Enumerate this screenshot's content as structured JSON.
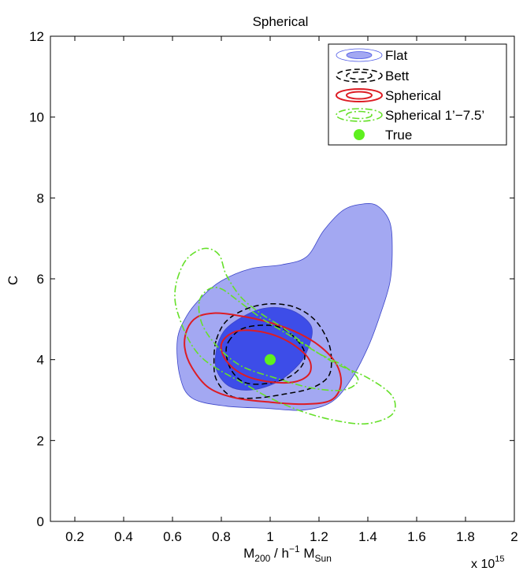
{
  "chart_data": {
    "type": "contour",
    "title": "Spherical",
    "xlabel": {
      "main": "M",
      "sub1": "200",
      "mid": " / h",
      "sup": "−1",
      "main2": " M",
      "sub2": "Sun"
    },
    "ylabel": "C",
    "x_multiplier": {
      "base": "x 10",
      "exponent": "15"
    },
    "xlim": [
      0.1,
      2.0
    ],
    "ylim": [
      0,
      12
    ],
    "xticks": [
      0.2,
      0.4,
      0.6,
      0.8,
      1.0,
      1.2,
      1.4,
      1.6,
      1.8,
      2.0
    ],
    "xtick_labels": [
      "0.2",
      "0.4",
      "0.6",
      "0.8",
      "1",
      "1.2",
      "1.4",
      "1.6",
      "1.8",
      "2"
    ],
    "yticks": [
      0,
      2,
      4,
      6,
      8,
      10,
      12
    ],
    "ytick_labels": [
      "0",
      "2",
      "4",
      "6",
      "8",
      "10",
      "12"
    ],
    "grid": false,
    "legend_position": "top-right",
    "legend": [
      {
        "label": "Flat",
        "style": "filled",
        "color": "#4a56e6"
      },
      {
        "label": "Bett",
        "style": "dashed",
        "color": "#000000"
      },
      {
        "label": "Spherical",
        "style": "solid",
        "color": "#dd1c24"
      },
      {
        "label": "Spherical 1’−7.5’",
        "style": "dashdot",
        "color": "#66e02a"
      },
      {
        "label": "True",
        "style": "marker",
        "color": "#5ef01e"
      }
    ],
    "series": [
      {
        "name": "Flat",
        "contours": [
          {
            "level": "outer",
            "fill": "#a3a8f2",
            "points": [
              [
                0.62,
                4.5
              ],
              [
                0.66,
                5.1
              ],
              [
                0.72,
                5.55
              ],
              [
                0.8,
                5.95
              ],
              [
                0.92,
                6.25
              ],
              [
                1.05,
                6.35
              ],
              [
                1.15,
                6.55
              ],
              [
                1.22,
                7.2
              ],
              [
                1.3,
                7.7
              ],
              [
                1.38,
                7.85
              ],
              [
                1.44,
                7.8
              ],
              [
                1.49,
                7.4
              ],
              [
                1.5,
                6.7
              ],
              [
                1.49,
                5.9
              ],
              [
                1.45,
                5.1
              ],
              [
                1.4,
                4.3
              ],
              [
                1.33,
                3.5
              ],
              [
                1.25,
                2.95
              ],
              [
                1.13,
                2.75
              ],
              [
                0.98,
                2.8
              ],
              [
                0.82,
                2.85
              ],
              [
                0.68,
                3.05
              ],
              [
                0.63,
                3.6
              ]
            ]
          },
          {
            "level": "inner",
            "fill": "#3d4de8",
            "points": [
              [
                0.78,
                4.25
              ],
              [
                0.81,
                4.7
              ],
              [
                0.87,
                5.0
              ],
              [
                0.96,
                5.25
              ],
              [
                1.05,
                5.28
              ],
              [
                1.12,
                5.12
              ],
              [
                1.17,
                4.8
              ],
              [
                1.16,
                4.35
              ],
              [
                1.12,
                3.9
              ],
              [
                1.03,
                3.45
              ],
              [
                0.92,
                3.25
              ],
              [
                0.83,
                3.35
              ],
              [
                0.78,
                3.75
              ]
            ]
          }
        ]
      },
      {
        "name": "Bett",
        "contours": [
          {
            "level": "outer",
            "points": [
              [
                0.78,
                4.5
              ],
              [
                0.82,
                4.95
              ],
              [
                0.9,
                5.25
              ],
              [
                1.0,
                5.38
              ],
              [
                1.1,
                5.3
              ],
              [
                1.18,
                5.0
              ],
              [
                1.23,
                4.55
              ],
              [
                1.25,
                4.1
              ],
              [
                1.24,
                3.6
              ],
              [
                1.17,
                3.3
              ],
              [
                1.06,
                3.15
              ],
              [
                0.94,
                3.05
              ],
              [
                0.84,
                3.1
              ],
              [
                0.78,
                3.5
              ],
              [
                0.77,
                4.0
              ]
            ]
          },
          {
            "level": "inner",
            "points": [
              [
                0.83,
                4.45
              ],
              [
                0.88,
                4.75
              ],
              [
                0.96,
                4.85
              ],
              [
                1.04,
                4.8
              ],
              [
                1.1,
                4.55
              ],
              [
                1.14,
                4.2
              ],
              [
                1.13,
                3.85
              ],
              [
                1.07,
                3.55
              ],
              [
                0.97,
                3.4
              ],
              [
                0.89,
                3.45
              ],
              [
                0.84,
                3.75
              ],
              [
                0.82,
                4.15
              ]
            ]
          }
        ]
      },
      {
        "name": "Spherical",
        "contours": [
          {
            "level": "outer",
            "points": [
              [
                0.66,
                4.75
              ],
              [
                0.7,
                5.05
              ],
              [
                0.77,
                5.15
              ],
              [
                0.86,
                5.1
              ],
              [
                0.98,
                4.95
              ],
              [
                1.1,
                4.7
              ],
              [
                1.2,
                4.35
              ],
              [
                1.27,
                3.9
              ],
              [
                1.29,
                3.4
              ],
              [
                1.25,
                3.0
              ],
              [
                1.14,
                2.9
              ],
              [
                1.0,
                2.95
              ],
              [
                0.86,
                3.05
              ],
              [
                0.75,
                3.3
              ],
              [
                0.68,
                3.8
              ],
              [
                0.65,
                4.3
              ]
            ]
          },
          {
            "level": "inner",
            "points": [
              [
                0.81,
                4.5
              ],
              [
                0.86,
                4.7
              ],
              [
                0.93,
                4.72
              ],
              [
                1.02,
                4.6
              ],
              [
                1.1,
                4.35
              ],
              [
                1.16,
                4.0
              ],
              [
                1.16,
                3.65
              ],
              [
                1.1,
                3.45
              ],
              [
                1.0,
                3.45
              ],
              [
                0.9,
                3.6
              ],
              [
                0.83,
                3.9
              ],
              [
                0.8,
                4.25
              ]
            ]
          }
        ]
      },
      {
        "name": "Spherical 1’−7.5’",
        "contours": [
          {
            "level": "outer",
            "points": [
              [
                0.62,
                6.0
              ],
              [
                0.66,
                6.5
              ],
              [
                0.73,
                6.75
              ],
              [
                0.79,
                6.6
              ],
              [
                0.82,
                6.1
              ],
              [
                0.88,
                5.55
              ],
              [
                0.96,
                5.15
              ],
              [
                1.05,
                4.8
              ],
              [
                1.15,
                4.35
              ],
              [
                1.27,
                3.9
              ],
              [
                1.4,
                3.55
              ],
              [
                1.5,
                3.1
              ],
              [
                1.5,
                2.65
              ],
              [
                1.4,
                2.42
              ],
              [
                1.28,
                2.48
              ],
              [
                1.14,
                2.7
              ],
              [
                1.0,
                3.05
              ],
              [
                0.88,
                3.45
              ],
              [
                0.79,
                3.75
              ],
              [
                0.72,
                4.05
              ],
              [
                0.67,
                4.45
              ],
              [
                0.63,
                5.0
              ],
              [
                0.61,
                5.5
              ]
            ]
          },
          {
            "level": "inner",
            "points": [
              [
                0.71,
                5.45
              ],
              [
                0.75,
                5.75
              ],
              [
                0.8,
                5.75
              ],
              [
                0.87,
                5.45
              ],
              [
                0.97,
                5.0
              ],
              [
                1.08,
                4.6
              ],
              [
                1.2,
                4.15
              ],
              [
                1.3,
                3.85
              ],
              [
                1.36,
                3.5
              ],
              [
                1.3,
                3.25
              ],
              [
                1.17,
                3.3
              ],
              [
                1.02,
                3.55
              ],
              [
                0.88,
                3.85
              ],
              [
                0.78,
                4.35
              ],
              [
                0.72,
                4.9
              ]
            ]
          }
        ]
      }
    ],
    "true_point": {
      "x": 1.0,
      "y": 4.0
    }
  }
}
